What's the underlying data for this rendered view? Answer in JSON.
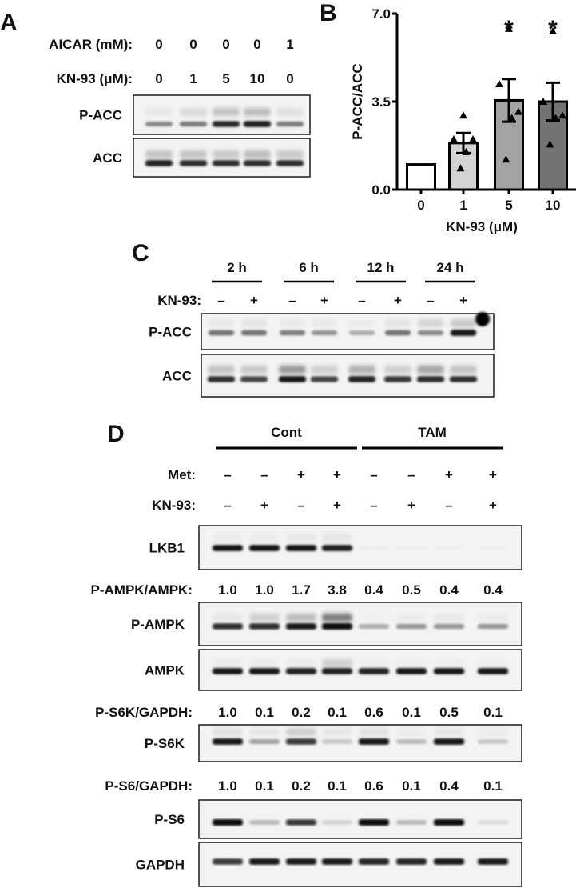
{
  "panels": {
    "a": "A",
    "b": "B",
    "c": "C",
    "d": "D"
  },
  "panel_a": {
    "rows": [
      {
        "label": "AICAR (mM):",
        "values": [
          "0",
          "0",
          "0",
          "0",
          "1"
        ]
      },
      {
        "label": "KN-93 (μM):",
        "values": [
          "0",
          "1",
          "5",
          "10",
          "0"
        ]
      }
    ],
    "blots": [
      {
        "label": "P-ACC",
        "bands": [
          0.45,
          0.5,
          0.85,
          0.9,
          0.5
        ],
        "smear": [
          0.1,
          0.2,
          0.4,
          0.45,
          0.15
        ]
      },
      {
        "label": "ACC",
        "bands": [
          0.9,
          0.85,
          0.85,
          0.85,
          0.85
        ],
        "smear": [
          0.4,
          0.4,
          0.35,
          0.45,
          0.35
        ]
      }
    ]
  },
  "chart_data": {
    "type": "bar",
    "categories": [
      "0",
      "1",
      "5",
      "10"
    ],
    "values": [
      1.0,
      1.85,
      3.55,
      3.5
    ],
    "sem": [
      0,
      0.4,
      0.85,
      0.75
    ],
    "points": [
      [],
      [
        2.95,
        2.0,
        2.0,
        1.5,
        0.85
      ],
      [
        6.4,
        4.2,
        3.1,
        2.85,
        1.2
      ],
      [
        6.3,
        3.5,
        2.95,
        2.85,
        1.8
      ]
    ],
    "significance": [
      "",
      "",
      "*",
      "*"
    ],
    "bar_colors": [
      "#ffffff",
      "#d3d3d3",
      "#a3a3a3",
      "#737373"
    ],
    "xlabel": "KN-93 (μM)",
    "ylabel": "P-ACC/ACC",
    "ylim": [
      0,
      7.0
    ],
    "yticks": [
      "0.0",
      "3.5",
      "7.0"
    ],
    "grid": false
  },
  "panel_c": {
    "timepoints": [
      "2 h",
      "6 h",
      "12 h",
      "24 h"
    ],
    "kn93_label": "KN-93:",
    "kn93": [
      "–",
      "+",
      "–",
      "+",
      "–",
      "+",
      "–",
      "+"
    ],
    "blots": [
      {
        "label": "P-ACC",
        "bands": [
          0.55,
          0.55,
          0.5,
          0.4,
          0.3,
          0.55,
          0.45,
          0.95
        ],
        "smear": [
          0.08,
          0.12,
          0.08,
          0.08,
          0.06,
          0.12,
          0.25,
          0.35
        ]
      },
      {
        "label": "ACC",
        "bands": [
          0.85,
          0.75,
          0.95,
          0.75,
          0.9,
          0.8,
          0.85,
          0.85
        ],
        "smear": [
          0.4,
          0.35,
          0.75,
          0.3,
          0.55,
          0.3,
          0.65,
          0.4
        ]
      }
    ]
  },
  "panel_d": {
    "groups": [
      "Cont",
      "TAM"
    ],
    "met_label": "Met:",
    "met": [
      "–",
      "–",
      "+",
      "+",
      "–",
      "–",
      "+",
      "+"
    ],
    "kn93_label": "KN-93:",
    "kn93": [
      "–",
      "+",
      "–",
      "+",
      "–",
      "+",
      "–",
      "+"
    ],
    "rows": [
      {
        "type": "blot",
        "label": "LKB1",
        "bands": [
          0.95,
          0.95,
          0.95,
          0.9,
          0.02,
          0.02,
          0.02,
          0.02
        ],
        "smear": [
          0.05,
          0.05,
          0.08,
          0.1,
          0,
          0,
          0,
          0
        ]
      },
      {
        "type": "ratio",
        "label": "P-AMPK/AMPK:",
        "values": [
          "1.0",
          "1.0",
          "1.7",
          "3.8",
          "0.4",
          "0.5",
          "0.4",
          "0.4"
        ]
      },
      {
        "type": "blot",
        "label": "P-AMPK",
        "bands": [
          0.85,
          0.85,
          0.95,
          1.0,
          0.3,
          0.4,
          0.4,
          0.4
        ],
        "smear": [
          0.1,
          0.3,
          0.45,
          1.0,
          0.02,
          0.05,
          0.08,
          0.05
        ]
      },
      {
        "type": "blot",
        "label": "AMPK",
        "bands": [
          0.95,
          0.95,
          0.9,
          0.9,
          0.9,
          0.95,
          0.95,
          0.95
        ],
        "smear": [
          0.05,
          0.05,
          0.05,
          0.3,
          0.03,
          0.03,
          0.03,
          0.03
        ]
      },
      {
        "type": "ratio",
        "label": "P-S6K/GAPDH:",
        "values": [
          "1.0",
          "0.1",
          "0.2",
          "0.1",
          "0.6",
          "0.1",
          "0.5",
          "0.1"
        ]
      },
      {
        "type": "blot",
        "label": "P-S6K",
        "bands": [
          0.95,
          0.35,
          0.8,
          0.2,
          0.95,
          0.25,
          0.95,
          0.2
        ],
        "smear": [
          0.15,
          0.1,
          0.3,
          0.1,
          0.15,
          0.05,
          0.1,
          0.05
        ]
      },
      {
        "type": "ratio",
        "label": "P-S6/GAPDH:",
        "values": [
          "1.0",
          "0.1",
          "0.2",
          "0.1",
          "0.6",
          "0.1",
          "0.4",
          "0.1"
        ]
      },
      {
        "type": "blot",
        "label": "P-S6",
        "bands": [
          1.0,
          0.25,
          0.8,
          0.15,
          1.0,
          0.25,
          1.0,
          0.1
        ],
        "smear": [
          0,
          0,
          0,
          0,
          0,
          0,
          0,
          0
        ]
      },
      {
        "type": "blot",
        "label": "GAPDH",
        "bands": [
          0.8,
          0.95,
          0.95,
          0.95,
          0.9,
          0.9,
          0.95,
          0.95
        ],
        "smear": [
          0,
          0,
          0,
          0,
          0,
          0,
          0,
          0
        ]
      }
    ]
  }
}
